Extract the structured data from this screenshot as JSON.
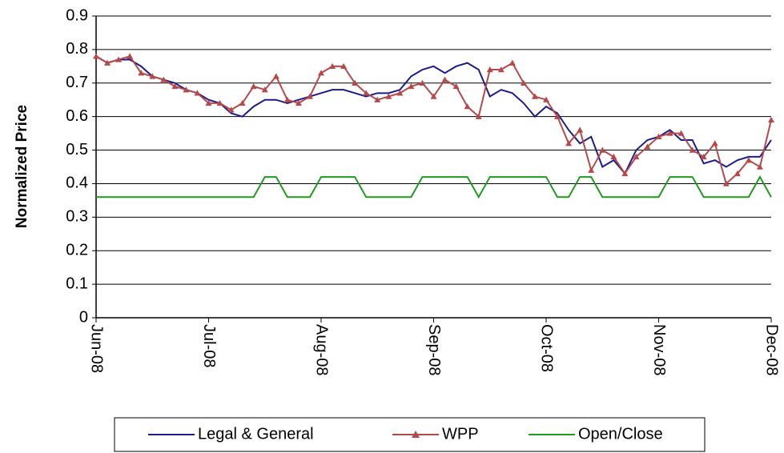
{
  "chart_data": {
    "type": "line",
    "ylabel": "Normalized Price",
    "categories": [
      "Jun-08",
      null,
      null,
      null,
      null,
      null,
      null,
      null,
      null,
      null,
      "Jul-08",
      null,
      null,
      null,
      null,
      null,
      null,
      null,
      null,
      null,
      "Aug-08",
      null,
      null,
      null,
      null,
      null,
      null,
      null,
      null,
      null,
      "Sep-08",
      null,
      null,
      null,
      null,
      null,
      null,
      null,
      null,
      null,
      "Oct-08",
      null,
      null,
      null,
      null,
      null,
      null,
      null,
      null,
      null,
      "Nov-08",
      null,
      null,
      null,
      null,
      null,
      null,
      null,
      null,
      null,
      "Dec-08"
    ],
    "series": [
      {
        "name": "Legal & General",
        "color": "#1c1c8a",
        "marker": "none",
        "values": [
          0.78,
          0.76,
          0.77,
          0.77,
          0.75,
          0.72,
          0.71,
          0.7,
          0.68,
          0.67,
          0.65,
          0.64,
          0.61,
          0.6,
          0.63,
          0.65,
          0.65,
          0.64,
          0.65,
          0.66,
          0.67,
          0.68,
          0.68,
          0.67,
          0.66,
          0.67,
          0.67,
          0.68,
          0.72,
          0.74,
          0.75,
          0.73,
          0.75,
          0.76,
          0.74,
          0.66,
          0.68,
          0.67,
          0.64,
          0.6,
          0.63,
          0.61,
          0.56,
          0.52,
          0.54,
          0.45,
          0.47,
          0.43,
          0.5,
          0.53,
          0.54,
          0.56,
          0.53,
          0.53,
          0.46,
          0.47,
          0.45,
          0.47,
          0.48,
          0.48,
          0.53
        ]
      },
      {
        "name": "WPP",
        "color": "#b5494a",
        "marker": "triangle",
        "values": [
          0.78,
          0.76,
          0.77,
          0.78,
          0.73,
          0.72,
          0.71,
          0.69,
          0.68,
          0.67,
          0.64,
          0.64,
          0.62,
          0.64,
          0.69,
          0.68,
          0.72,
          0.65,
          0.64,
          0.66,
          0.73,
          0.75,
          0.75,
          0.7,
          0.67,
          0.65,
          0.66,
          0.67,
          0.69,
          0.7,
          0.66,
          0.71,
          0.69,
          0.63,
          0.6,
          0.74,
          0.74,
          0.76,
          0.7,
          0.66,
          0.65,
          0.6,
          0.52,
          0.56,
          0.44,
          0.5,
          0.48,
          0.43,
          0.48,
          0.51,
          0.54,
          0.55,
          0.55,
          0.5,
          0.48,
          0.52,
          0.4,
          0.43,
          0.47,
          0.45,
          0.59
        ]
      },
      {
        "name": "Open/Close",
        "color": "#1e9a1e",
        "marker": "none",
        "values": [
          0.36,
          0.36,
          0.36,
          0.36,
          0.36,
          0.36,
          0.36,
          0.36,
          0.36,
          0.36,
          0.36,
          0.36,
          0.36,
          0.36,
          0.36,
          0.42,
          0.42,
          0.36,
          0.36,
          0.36,
          0.42,
          0.42,
          0.42,
          0.42,
          0.36,
          0.36,
          0.36,
          0.36,
          0.36,
          0.42,
          0.42,
          0.42,
          0.42,
          0.42,
          0.36,
          0.42,
          0.42,
          0.42,
          0.42,
          0.42,
          0.42,
          0.36,
          0.36,
          0.42,
          0.42,
          0.36,
          0.36,
          0.36,
          0.36,
          0.36,
          0.36,
          0.42,
          0.42,
          0.42,
          0.36,
          0.36,
          0.36,
          0.36,
          0.36,
          0.42,
          0.36
        ]
      }
    ],
    "ylim": [
      0,
      0.9
    ],
    "yticks": [
      0,
      0.1,
      0.2,
      0.3,
      0.4,
      0.5,
      0.6,
      0.7,
      0.8,
      0.9
    ],
    "grid": true,
    "legend": "bottom"
  }
}
